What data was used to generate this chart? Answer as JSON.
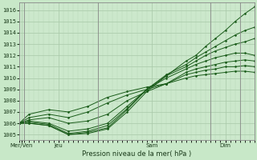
{
  "xlabel": "Pression niveau de la mer( hPa )",
  "ylim": [
    1004.5,
    1016.7
  ],
  "yticks": [
    1005,
    1006,
    1007,
    1008,
    1009,
    1010,
    1011,
    1012,
    1013,
    1014,
    1015,
    1016
  ],
  "background_color": "#c8e8c8",
  "plot_bg_color": "#cce8cc",
  "grid_color_major": "#a8c8a8",
  "grid_color_minor": "#b8d8b8",
  "line_color": "#1a5c1a",
  "series": [
    {
      "x": [
        0,
        1,
        3,
        5,
        7,
        9,
        11,
        13,
        15,
        17,
        18,
        19,
        20,
        21,
        22,
        23,
        24
      ],
      "y": [
        1006.0,
        1006.0,
        1005.8,
        1005.0,
        1005.1,
        1005.5,
        1007.0,
        1008.8,
        1010.2,
        1011.5,
        1012.0,
        1012.8,
        1013.5,
        1014.2,
        1015.0,
        1015.7,
        1016.3
      ]
    },
    {
      "x": [
        0,
        1,
        3,
        5,
        7,
        9,
        11,
        13,
        15,
        17,
        18,
        19,
        20,
        21,
        22,
        23,
        24
      ],
      "y": [
        1006.0,
        1006.0,
        1005.8,
        1005.0,
        1005.2,
        1005.6,
        1007.2,
        1009.0,
        1010.3,
        1011.2,
        1011.8,
        1012.3,
        1012.8,
        1013.3,
        1013.8,
        1014.2,
        1014.5
      ]
    },
    {
      "x": [
        0,
        1,
        3,
        5,
        7,
        9,
        11,
        13,
        15,
        17,
        18,
        19,
        20,
        21,
        22,
        23,
        24
      ],
      "y": [
        1006.0,
        1006.1,
        1005.9,
        1005.1,
        1005.3,
        1005.8,
        1007.3,
        1009.0,
        1010.2,
        1011.0,
        1011.5,
        1012.0,
        1012.4,
        1012.7,
        1013.0,
        1013.2,
        1013.5
      ]
    },
    {
      "x": [
        0,
        1,
        3,
        5,
        7,
        9,
        11,
        13,
        15,
        17,
        18,
        19,
        20,
        21,
        22,
        23,
        24
      ],
      "y": [
        1006.0,
        1006.2,
        1006.0,
        1005.3,
        1005.5,
        1006.0,
        1007.5,
        1009.0,
        1010.0,
        1010.8,
        1011.2,
        1011.5,
        1011.8,
        1012.0,
        1012.2,
        1012.2,
        1012.0
      ]
    },
    {
      "x": [
        0,
        1,
        3,
        5,
        7,
        9,
        11,
        13,
        15,
        17,
        18,
        19,
        20,
        21,
        22,
        23,
        24
      ],
      "y": [
        1006.0,
        1006.3,
        1006.5,
        1006.0,
        1006.2,
        1006.8,
        1008.0,
        1008.8,
        1009.5,
        1010.5,
        1010.8,
        1011.0,
        1011.2,
        1011.4,
        1011.5,
        1011.6,
        1011.5
      ]
    },
    {
      "x": [
        0,
        1,
        3,
        5,
        7,
        9,
        11,
        13,
        15,
        17,
        18,
        19,
        20,
        21,
        22,
        23,
        24
      ],
      "y": [
        1006.0,
        1006.5,
        1006.8,
        1006.5,
        1007.0,
        1007.8,
        1008.5,
        1009.0,
        1009.5,
        1010.3,
        1010.5,
        1010.7,
        1010.8,
        1011.0,
        1011.0,
        1011.1,
        1011.0
      ]
    },
    {
      "x": [
        0,
        1,
        3,
        5,
        7,
        9,
        11,
        13,
        15,
        17,
        18,
        19,
        20,
        21,
        22,
        23,
        24
      ],
      "y": [
        1006.0,
        1006.8,
        1007.2,
        1007.0,
        1007.5,
        1008.3,
        1008.8,
        1009.2,
        1009.5,
        1010.0,
        1010.2,
        1010.3,
        1010.4,
        1010.5,
        1010.6,
        1010.6,
        1010.5
      ]
    }
  ],
  "xlim": [
    0,
    24
  ],
  "vlines": [
    0.5,
    8.0,
    19.5,
    22.5
  ],
  "xtick_positions": [
    0.25,
    4.0,
    13.5,
    21.0
  ],
  "xtick_labels": [
    "Mer/Ven",
    "Jeu",
    "Sam",
    "Dim"
  ],
  "figsize": [
    3.2,
    2.0
  ],
  "dpi": 100
}
